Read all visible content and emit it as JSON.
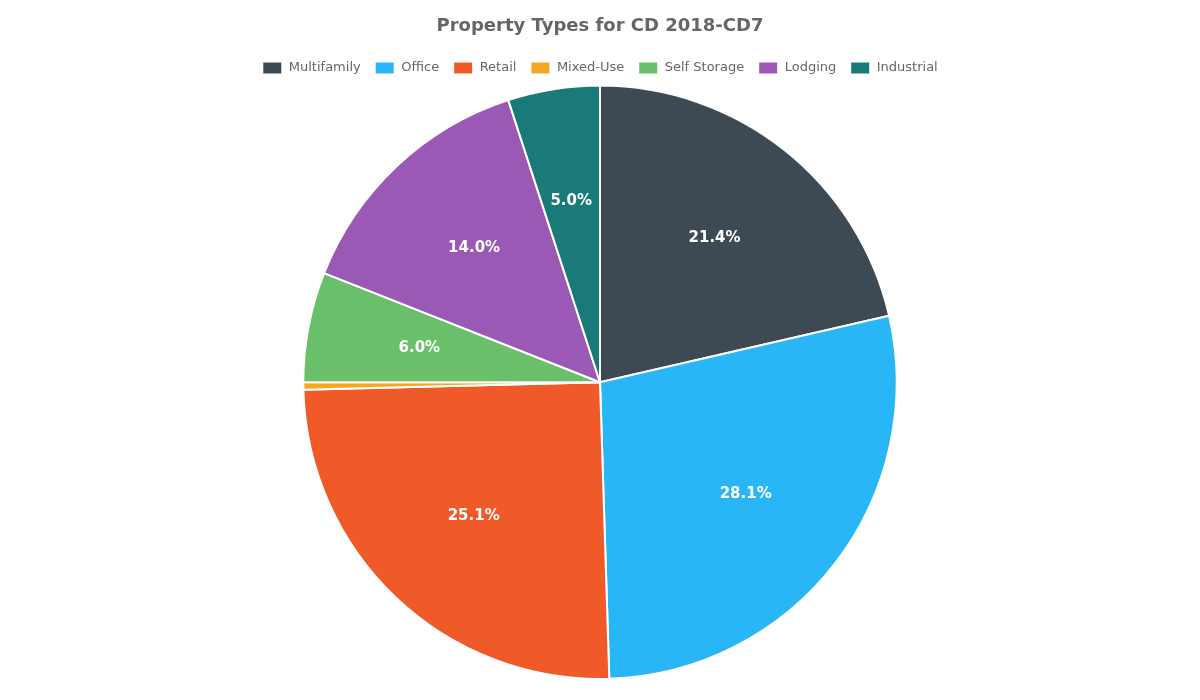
{
  "chart_data": {
    "type": "pie",
    "title": "Property Types for CD 2018-CD7",
    "categories": [
      "Multifamily",
      "Office",
      "Retail",
      "Mixed-Use",
      "Self Storage",
      "Lodging",
      "Industrial"
    ],
    "values": [
      21.4,
      28.1,
      25.1,
      0.4,
      6.0,
      14.0,
      5.0
    ],
    "value_labels": [
      "21.4%",
      "28.1%",
      "25.1%",
      null,
      "6.0%",
      "14.0%",
      "5.0%"
    ],
    "colors": [
      "#3d4a54",
      "#29b6f6",
      "#f05a28",
      "#f5a623",
      "#6abf6a",
      "#9b59b6",
      "#1a7a7a"
    ],
    "legend": "top",
    "data_labels": true
  }
}
